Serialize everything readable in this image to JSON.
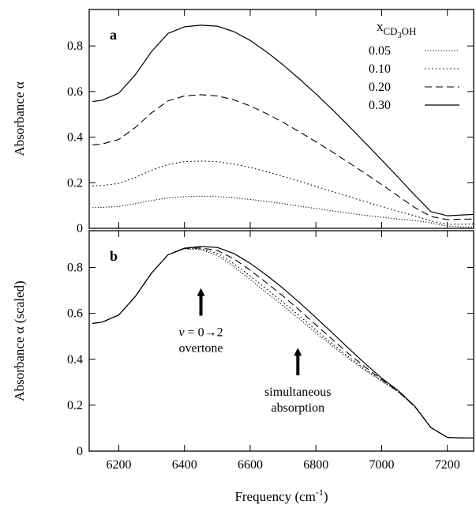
{
  "chart_data": [
    {
      "panel": "a",
      "type": "line",
      "x": [
        6120,
        6150,
        6200,
        6250,
        6300,
        6350,
        6400,
        6450,
        6500,
        6550,
        6600,
        6650,
        6700,
        6750,
        6800,
        6850,
        6900,
        6950,
        7000,
        7050,
        7100,
        7150,
        7200,
        7250,
        7280
      ],
      "series": [
        {
          "name": "0.05",
          "style": "dotted",
          "values": [
            0.091,
            0.092,
            0.096,
            0.108,
            0.122,
            0.133,
            0.139,
            0.141,
            0.139,
            0.134,
            0.127,
            0.118,
            0.108,
            0.097,
            0.087,
            0.077,
            0.067,
            0.057,
            0.049,
            0.041,
            0.034,
            0.024,
            0.01,
            0.006,
            0.006
          ]
        },
        {
          "name": "0.10",
          "style": "dotted-fine",
          "values": [
            0.186,
            0.188,
            0.197,
            0.223,
            0.255,
            0.28,
            0.292,
            0.295,
            0.292,
            0.282,
            0.267,
            0.249,
            0.228,
            0.206,
            0.184,
            0.161,
            0.139,
            0.117,
            0.096,
            0.075,
            0.055,
            0.032,
            0.018,
            0.018,
            0.019
          ]
        },
        {
          "name": "0.20",
          "style": "dashed",
          "values": [
            0.366,
            0.37,
            0.39,
            0.442,
            0.507,
            0.559,
            0.581,
            0.586,
            0.581,
            0.564,
            0.537,
            0.503,
            0.465,
            0.423,
            0.38,
            0.335,
            0.288,
            0.241,
            0.192,
            0.142,
            0.092,
            0.052,
            0.038,
            0.04,
            0.041
          ]
        },
        {
          "name": "0.30",
          "style": "solid",
          "values": [
            0.556,
            0.562,
            0.593,
            0.673,
            0.776,
            0.855,
            0.884,
            0.891,
            0.887,
            0.863,
            0.824,
            0.774,
            0.717,
            0.655,
            0.59,
            0.521,
            0.449,
            0.375,
            0.3,
            0.224,
            0.147,
            0.073,
            0.055,
            0.059,
            0.061
          ]
        }
      ],
      "xlabel": "",
      "ylabel": "Absorbance α",
      "xlim": [
        6110,
        7280
      ],
      "ylim": [
        0,
        0.96
      ],
      "yticks": [
        "0",
        "0.2",
        "0.4",
        "0.6",
        "0.8"
      ],
      "legend": {
        "title_base": "x",
        "title_sub": "CD",
        "title_sub_index": "3",
        "title_sub_tail": "OH",
        "entries": [
          "0.05",
          "0.10",
          "0.20",
          "0.30"
        ],
        "placement": "top-right"
      }
    },
    {
      "panel": "b",
      "type": "line",
      "x": [
        6120,
        6150,
        6200,
        6250,
        6300,
        6350,
        6400,
        6450,
        6500,
        6550,
        6600,
        6650,
        6700,
        6750,
        6800,
        6850,
        6900,
        6950,
        7000,
        7050,
        7100,
        7150,
        7200,
        7250,
        7280
      ],
      "series": [
        {
          "name": "0.05",
          "style": "dotted",
          "values": [
            0.556,
            0.562,
            0.593,
            0.673,
            0.776,
            0.855,
            0.881,
            0.878,
            0.853,
            0.804,
            0.747,
            0.69,
            0.633,
            0.575,
            0.515,
            0.458,
            0.403,
            0.352,
            0.305,
            0.258,
            0.195,
            0.102,
            0.06,
            0.057,
            0.057
          ]
        },
        {
          "name": "0.10",
          "style": "dotted-fine",
          "values": [
            0.556,
            0.562,
            0.593,
            0.673,
            0.776,
            0.855,
            0.882,
            0.881,
            0.862,
            0.817,
            0.763,
            0.706,
            0.648,
            0.589,
            0.527,
            0.467,
            0.41,
            0.356,
            0.307,
            0.259,
            0.195,
            0.102,
            0.06,
            0.057,
            0.057
          ]
        },
        {
          "name": "0.20",
          "style": "dashed",
          "values": [
            0.556,
            0.562,
            0.593,
            0.673,
            0.776,
            0.855,
            0.883,
            0.885,
            0.874,
            0.838,
            0.788,
            0.733,
            0.675,
            0.614,
            0.55,
            0.487,
            0.424,
            0.366,
            0.312,
            0.261,
            0.196,
            0.102,
            0.06,
            0.057,
            0.057
          ]
        },
        {
          "name": "0.30",
          "style": "solid",
          "values": [
            0.556,
            0.562,
            0.593,
            0.673,
            0.776,
            0.855,
            0.884,
            0.891,
            0.887,
            0.861,
            0.818,
            0.766,
            0.709,
            0.647,
            0.582,
            0.515,
            0.447,
            0.381,
            0.318,
            0.264,
            0.197,
            0.103,
            0.06,
            0.057,
            0.057
          ]
        }
      ],
      "xlabel": "Frequency (cm",
      "xlabel_sup": "-1",
      "xlabel_tail": ")",
      "ylabel": "Absorbance α (scaled)",
      "xlim": [
        6110,
        7280
      ],
      "ylim": [
        0,
        0.96
      ],
      "xticks": [
        "6200",
        "6400",
        "6600",
        "6800",
        "7000",
        "7200"
      ],
      "yticks": [
        "0",
        "0.2",
        "0.4",
        "0.6",
        "0.8"
      ],
      "annotations": [
        {
          "lines": [
            "v = 0→2",
            "overtone"
          ],
          "line1_italic": "v",
          "line1_rest": " = 0→2",
          "arrow_x": 6450,
          "arrow_from_y": 0.59,
          "arrow_to_y": 0.71
        },
        {
          "lines": [
            "simultaneous",
            "absorption"
          ],
          "arrow_x": 6745,
          "arrow_from_y": 0.33,
          "arrow_to_y": 0.45
        }
      ]
    }
  ]
}
